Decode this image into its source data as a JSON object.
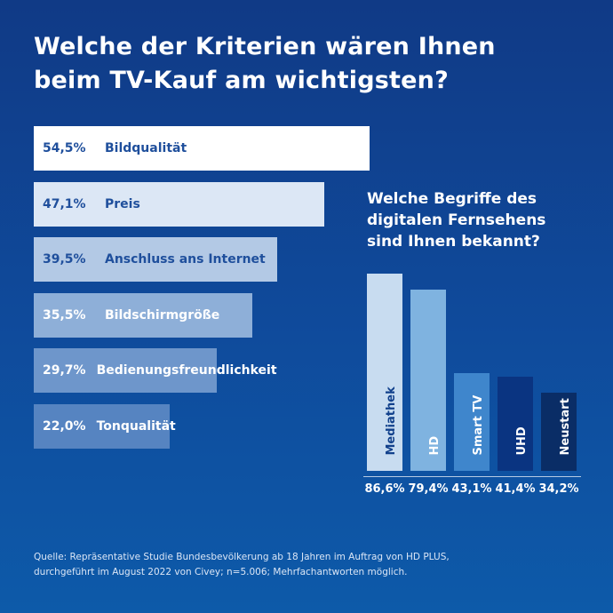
{
  "title": {
    "line1": "Welche der Kriterien wären Ihnen",
    "line2": "beim TV-Kauf am wichtigsten?"
  },
  "subtitle": {
    "line1": "Welche Begriffe des",
    "line2": "digitalen Fernsehens",
    "line3": "sind Ihnen bekannt?"
  },
  "source": {
    "line1": "Quelle: Repräsentative Studie Bundesbevölkerung ab 18 Jahren im Auftrag von HD PLUS,",
    "line2": "durchgeführt im August 2022 von Civey; n=5.006; Mehrfachantworten möglich."
  },
  "chart_data": [
    {
      "type": "bar",
      "orientation": "horizontal",
      "title": "Welche der Kriterien wären Ihnen beim TV-Kauf am wichtigsten?",
      "categories": [
        "Bildqualität",
        "Preis",
        "Anschluss ans Internet",
        "Bildschirmgröße",
        "Bedienungsfreundlichkeit",
        "Tonqualität"
      ],
      "values": [
        54.5,
        47.1,
        39.5,
        35.5,
        29.7,
        22.0
      ],
      "value_labels": [
        "54,5%",
        "47,1%",
        "39,5%",
        "35,5%",
        "29,7%",
        "22,0%"
      ],
      "colors": [
        "#ffffff",
        "#dce7f5",
        "#b3c9e5",
        "#8eafd8",
        "#6e96cb",
        "#5684c1"
      ],
      "text_colors": [
        "#1f4f9c",
        "#1f4f9c",
        "#1f4f9c",
        "#ffffff",
        "#ffffff",
        "#ffffff"
      ],
      "grid": false
    },
    {
      "type": "bar",
      "orientation": "vertical",
      "title": "Welche Begriffe des digitalen Fernsehens sind Ihnen bekannt?",
      "categories": [
        "Mediathek",
        "HD",
        "Smart TV",
        "UHD",
        "Neustart"
      ],
      "values": [
        86.6,
        79.4,
        43.1,
        41.4,
        34.2
      ],
      "value_labels": [
        "86,6%",
        "79,4%",
        "43,1%",
        "41,4%",
        "34,2%"
      ],
      "colors": [
        "#c8dcf0",
        "#7fb3e0",
        "#3f86cc",
        "#0a3481",
        "#0a2d66"
      ],
      "text_colors": [
        "#12418c",
        "#ffffff",
        "#ffffff",
        "#ffffff",
        "#ffffff"
      ],
      "grid": false
    }
  ]
}
